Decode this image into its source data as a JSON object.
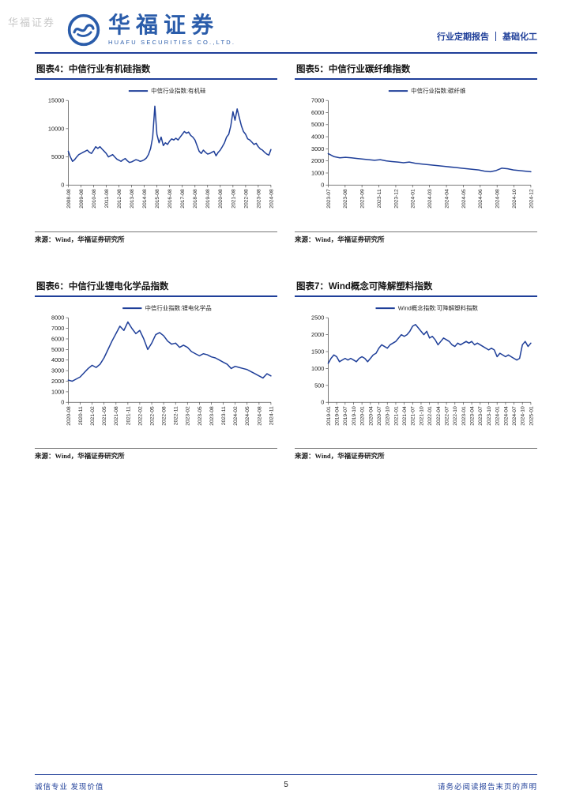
{
  "theme": {
    "accent": "#1f3f99",
    "line_color": "#1f3f99",
    "axis_color": "#555555",
    "text_color": "#222222"
  },
  "header": {
    "watermark": "华福证券",
    "logo_text": "华福证券",
    "logo_subtext": "HUAFU SECURITIES CO.,LTD.",
    "report_type": "行业定期报告",
    "divider": "|",
    "industry": "基础化工"
  },
  "figures": [
    {
      "title": "图表4：中信行业有机硅指数",
      "source": "来源：Wind，华福证券研究所"
    },
    {
      "title": "图表5：中信行业碳纤维指数",
      "source": "来源：Wind，华福证券研究所"
    },
    {
      "title": "图表6：中信行业锂电化学品指数",
      "source": "来源：Wind，华福证券研究所"
    },
    {
      "title": "图表7：Wind概念可降解塑料指数",
      "source": "来源：Wind，华福证券研究所"
    }
  ],
  "chart_data": [
    {
      "type": "line",
      "title": "中信行业有机硅指数",
      "series_name": "中信行业指数:有机硅",
      "xlabel": "",
      "ylabel": "",
      "grid": false,
      "legend_position": "top-center",
      "ylim": [
        0,
        15000
      ],
      "yticks": [
        0,
        5000,
        10000,
        15000
      ],
      "xticklabels": [
        "2008-08",
        "2009-08",
        "2010-08",
        "2011-08",
        "2012-08",
        "2013-08",
        "2014-08",
        "2015-08",
        "2016-08",
        "2017-08",
        "2018-08",
        "2019-08",
        "2020-08",
        "2021-08",
        "2022-08",
        "2023-08",
        "2024-08"
      ],
      "values": [
        6000,
        5000,
        4200,
        4500,
        5000,
        5400,
        5600,
        5800,
        6000,
        6200,
        5800,
        5600,
        6200,
        6800,
        6500,
        6800,
        6400,
        6000,
        5600,
        5000,
        5200,
        5400,
        5000,
        4600,
        4400,
        4200,
        4500,
        4700,
        4300,
        4000,
        4100,
        4300,
        4500,
        4400,
        4200,
        4300,
        4500,
        4800,
        5400,
        6500,
        8500,
        14000,
        9000,
        7500,
        8500,
        7000,
        7500,
        7200,
        7800,
        8200,
        8000,
        8300,
        8000,
        8500,
        9000,
        9500,
        9200,
        9400,
        8800,
        8500,
        8000,
        7000,
        6000,
        5600,
        6200,
        5800,
        5500,
        5600,
        5800,
        6000,
        5200,
        5800,
        6200,
        6800,
        7500,
        8500,
        9000,
        10500,
        13000,
        11500,
        13500,
        12000,
        10500,
        9500,
        9000,
        8200,
        8000,
        7600,
        7200,
        7400,
        6800,
        6400,
        6200,
        5800,
        5500,
        5300,
        6300
      ]
    },
    {
      "type": "line",
      "title": "中信行业碳纤维指数",
      "series_name": "中信行业指数:碳纤维",
      "xlabel": "",
      "ylabel": "",
      "grid": false,
      "legend_position": "top-center",
      "ylim": [
        0,
        7000
      ],
      "yticks": [
        0,
        1000,
        2000,
        3000,
        4000,
        5000,
        6000,
        7000
      ],
      "xticklabels": [
        "2023-07",
        "2023-08",
        "2023-09",
        "2023-11",
        "2023-12",
        "2024-01",
        "2024-03",
        "2024-04",
        "2024-05",
        "2024-06",
        "2024-08",
        "2024-10",
        "2024-12"
      ],
      "values": [
        2600,
        2350,
        2250,
        2300,
        2250,
        2200,
        2150,
        2100,
        2050,
        2100,
        2000,
        1950,
        1900,
        1850,
        1900,
        1800,
        1750,
        1700,
        1650,
        1600,
        1550,
        1500,
        1450,
        1400,
        1350,
        1300,
        1250,
        1150,
        1100,
        1200,
        1400,
        1350,
        1250,
        1200,
        1150,
        1100
      ]
    },
    {
      "type": "line",
      "title": "中信行业锂电化学品指数",
      "series_name": "中信行业指数:锂电化学品",
      "xlabel": "",
      "ylabel": "",
      "grid": false,
      "legend_position": "top-center",
      "ylim": [
        0,
        8000
      ],
      "yticks": [
        0,
        1000,
        2000,
        3000,
        4000,
        5000,
        6000,
        7000,
        8000
      ],
      "xticklabels": [
        "2020-08",
        "2020-11",
        "2021-02",
        "2021-05",
        "2021-08",
        "2021-11",
        "2022-02",
        "2022-05",
        "2022-08",
        "2022-11",
        "2023-02",
        "2023-05",
        "2023-08",
        "2023-11",
        "2024-02",
        "2024-05",
        "2024-08",
        "2024-11"
      ],
      "values": [
        2100,
        2000,
        2200,
        2400,
        2800,
        3200,
        3500,
        3300,
        3600,
        4200,
        5000,
        5800,
        6500,
        7200,
        6800,
        7600,
        7000,
        6500,
        6800,
        6000,
        5000,
        5600,
        6400,
        6600,
        6300,
        5800,
        5500,
        5600,
        5200,
        5400,
        5200,
        4800,
        4600,
        4400,
        4600,
        4500,
        4300,
        4200,
        4000,
        3800,
        3600,
        3200,
        3400,
        3300,
        3200,
        3100,
        2900,
        2700,
        2500,
        2300,
        2700,
        2500
      ]
    },
    {
      "type": "line",
      "title": "Wind概念可降解塑料指数",
      "series_name": "Wind概念指数:可降解塑料指数",
      "xlabel": "",
      "ylabel": "",
      "grid": false,
      "legend_position": "top-center",
      "ylim": [
        0,
        2500
      ],
      "yticks": [
        0,
        500,
        1000,
        1500,
        2000,
        2500
      ],
      "xticklabels": [
        "2019-01",
        "2019-04",
        "2019-07",
        "2019-10",
        "2020-01",
        "2020-04",
        "2020-07",
        "2020-10",
        "2021-01",
        "2021-04",
        "2021-07",
        "2021-10",
        "2022-01",
        "2022-04",
        "2022-07",
        "2022-10",
        "2023-01",
        "2023-04",
        "2023-07",
        "2023-10",
        "2024-01",
        "2024-04",
        "2024-07",
        "2024-10",
        "2025-01"
      ],
      "values": [
        1150,
        1300,
        1400,
        1350,
        1200,
        1250,
        1300,
        1250,
        1300,
        1250,
        1200,
        1300,
        1350,
        1300,
        1200,
        1300,
        1400,
        1450,
        1600,
        1700,
        1650,
        1600,
        1700,
        1750,
        1800,
        1900,
        2000,
        1950,
        2000,
        2100,
        2250,
        2300,
        2200,
        2100,
        2000,
        2100,
        1900,
        1950,
        1850,
        1700,
        1800,
        1900,
        1850,
        1800,
        1700,
        1650,
        1750,
        1700,
        1750,
        1800,
        1750,
        1800,
        1700,
        1750,
        1700,
        1650,
        1600,
        1550,
        1600,
        1550,
        1350,
        1450,
        1400,
        1350,
        1400,
        1350,
        1300,
        1250,
        1300,
        1700,
        1800,
        1650,
        1750
      ]
    }
  ],
  "footer": {
    "left": "诚信专业 发现价值",
    "page_number": "5",
    "right": "请务必阅读报告末页的声明"
  }
}
